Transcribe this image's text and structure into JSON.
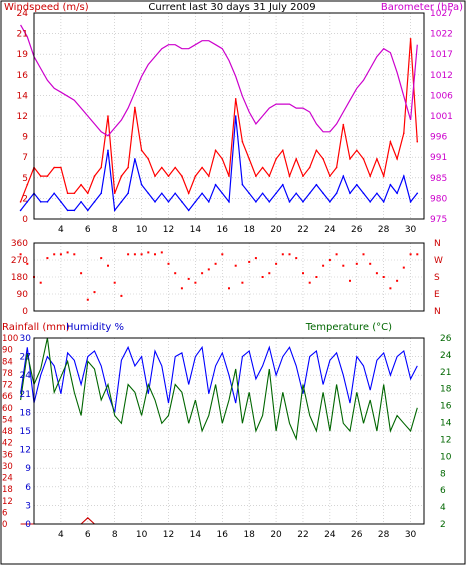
{
  "colors": {
    "wind": "#0000ff",
    "gust": "#ff0000",
    "baro": "#cc00cc",
    "dir": "#ff0000",
    "rain": "#cc0000",
    "humidity": "#0000ff",
    "temperature": "#006600",
    "grid": "#bbbbbb",
    "frame": "#000000",
    "dir_labels": "#cc0000"
  },
  "header": {
    "wind_title": "Windspeed (m/s)",
    "main_title": "Current last 30 days 31 July 2009",
    "baro_title": "Barometer (hPa)"
  },
  "x_axis": {
    "ticks": [
      "4",
      "6",
      "8",
      "10",
      "12",
      "14",
      "16",
      "18",
      "20",
      "22",
      "24",
      "26",
      "28",
      "30"
    ]
  },
  "panel2": {
    "rain_title": "Rainfall (mm)",
    "humidity_title": "Humidity %",
    "temperature_title": "Temperature (°C)"
  },
  "chart_data": [
    {
      "type": "line",
      "title": "Current last 30 days 31 July 2009",
      "ylabel": "Windspeed (m/s)",
      "ylabel_right": "Barometer (hPa)",
      "x": [
        1,
        1.5,
        2,
        2.5,
        3,
        3.5,
        4,
        4.5,
        5,
        5.5,
        6,
        6.5,
        7,
        7.5,
        8,
        8.5,
        9,
        9.5,
        10,
        10.5,
        11,
        11.5,
        12,
        12.5,
        13,
        13.5,
        14,
        14.5,
        15,
        15.5,
        16,
        16.5,
        17,
        17.5,
        18,
        18.5,
        19,
        19.5,
        20,
        20.5,
        21,
        21.5,
        22,
        22.5,
        23,
        23.5,
        24,
        24.5,
        25,
        25.5,
        26,
        26.5,
        27,
        27.5,
        28,
        28.5,
        29,
        29.5,
        30,
        30.5
      ],
      "y_ticks_left": [
        "0",
        "2",
        "5",
        "7",
        "9",
        "12",
        "14",
        "16",
        "19",
        "21",
        "24"
      ],
      "y_ticks_right": [
        "975",
        "980",
        "985",
        "991",
        "996",
        "1001",
        "1006",
        "1012",
        "1017",
        "1022",
        "1027"
      ],
      "ylim": [
        0,
        24
      ],
      "ylim_right": [
        975,
        1027
      ],
      "series": [
        {
          "role": "wind",
          "axis": "left",
          "values": [
            1,
            2,
            3,
            2,
            2,
            3,
            2,
            1,
            1,
            2,
            1,
            2,
            3,
            8,
            1,
            2,
            3,
            7,
            4,
            3,
            2,
            3,
            2,
            3,
            2,
            1,
            2,
            3,
            2,
            4,
            3,
            2,
            12,
            4,
            3,
            2,
            3,
            2,
            3,
            4,
            2,
            3,
            2,
            3,
            4,
            3,
            2,
            3,
            5,
            3,
            4,
            3,
            2,
            3,
            2,
            4,
            3,
            5,
            2,
            3
          ]
        },
        {
          "role": "gust",
          "axis": "left",
          "values": [
            2,
            4,
            6,
            5,
            5,
            6,
            6,
            3,
            3,
            4,
            3,
            5,
            6,
            12,
            3,
            5,
            6,
            13,
            8,
            7,
            5,
            6,
            5,
            6,
            5,
            3,
            5,
            6,
            5,
            8,
            7,
            5,
            14,
            9,
            7,
            5,
            6,
            5,
            7,
            8,
            5,
            7,
            5,
            6,
            8,
            7,
            5,
            6,
            11,
            7,
            8,
            7,
            5,
            7,
            5,
            9,
            7,
            10,
            21,
            9
          ]
        },
        {
          "role": "barometer",
          "axis": "right",
          "values": [
            1024,
            1021,
            1016,
            1013,
            1010,
            1008,
            1007,
            1006,
            1005,
            1003,
            1001,
            999,
            997,
            996,
            998,
            1000,
            1003,
            1007,
            1011,
            1014,
            1016,
            1018,
            1019,
            1019,
            1018,
            1018,
            1019,
            1020,
            1020,
            1019,
            1018,
            1015,
            1011,
            1006,
            1002,
            999,
            1001,
            1003,
            1004,
            1004,
            1004,
            1003,
            1003,
            1002,
            999,
            997,
            997,
            999,
            1002,
            1005,
            1008,
            1010,
            1013,
            1016,
            1018,
            1017,
            1012,
            1006,
            1000,
            1019
          ]
        }
      ]
    },
    {
      "type": "scatter",
      "ylabel": "Wind direction",
      "y_ticks_left": [
        "0",
        "90",
        "180",
        "270",
        "360"
      ],
      "y_ticks_right": [
        "N",
        "E",
        "S",
        "W",
        "N"
      ],
      "ylim": [
        0,
        360
      ],
      "x": [
        1,
        1.5,
        2,
        2.5,
        3,
        3.5,
        4,
        4.5,
        5,
        5.5,
        6,
        6.5,
        7,
        7.5,
        8,
        8.5,
        9,
        9.5,
        10,
        10.5,
        11,
        11.5,
        12,
        12.5,
        13,
        13.5,
        14,
        14.5,
        15,
        15.5,
        16,
        16.5,
        17,
        17.5,
        18,
        18.5,
        19,
        19.5,
        20,
        20.5,
        21,
        21.5,
        22,
        22.5,
        23,
        23.5,
        24,
        24.5,
        25,
        25.5,
        26,
        26.5,
        27,
        27.5,
        28,
        28.5,
        29,
        29.5,
        30,
        30.5
      ],
      "series": [
        {
          "role": "direction",
          "values": [
            300,
            250,
            180,
            150,
            280,
            300,
            300,
            310,
            300,
            200,
            60,
            100,
            280,
            240,
            150,
            80,
            300,
            300,
            300,
            310,
            300,
            310,
            250,
            200,
            120,
            170,
            150,
            200,
            220,
            250,
            300,
            120,
            240,
            150,
            260,
            280,
            180,
            200,
            250,
            300,
            300,
            280,
            200,
            150,
            180,
            240,
            270,
            300,
            240,
            160,
            250,
            300,
            250,
            200,
            180,
            120,
            160,
            230,
            300,
            300
          ]
        }
      ]
    },
    {
      "type": "line",
      "y_ticks_rain": [
        "0",
        "6",
        "12",
        "18",
        "24",
        "30",
        "36",
        "42",
        "48",
        "54",
        "60",
        "66",
        "72",
        "78",
        "84",
        "90",
        "100"
      ],
      "y_ticks_humidity": [
        "0",
        "3",
        "6",
        "9",
        "12",
        "15",
        "18",
        "21",
        "24",
        "27",
        "30"
      ],
      "y_ticks_temperature": [
        "2",
        "4",
        "6",
        "8",
        "10",
        "12",
        "14",
        "16",
        "18",
        "21",
        "24",
        "26"
      ],
      "ylim_humidity": [
        0,
        100
      ],
      "ylim_temperature": [
        2,
        26
      ],
      "ylim_rain": [
        0,
        30
      ],
      "x": [
        1,
        1.5,
        2,
        2.5,
        3,
        3.5,
        4,
        4.5,
        5,
        5.5,
        6,
        6.5,
        7,
        7.5,
        8,
        8.5,
        9,
        9.5,
        10,
        10.5,
        11,
        11.5,
        12,
        12.5,
        13,
        13.5,
        14,
        14.5,
        15,
        15.5,
        16,
        16.5,
        17,
        17.5,
        18,
        18.5,
        19,
        19.5,
        20,
        20.5,
        21,
        21.5,
        22,
        22.5,
        23,
        23.5,
        24,
        24.5,
        25,
        25.5,
        26,
        26.5,
        27,
        27.5,
        28,
        28.5,
        29,
        29.5,
        30,
        30.5
      ],
      "series": [
        {
          "role": "humidity",
          "axis": "humidity",
          "values": [
            70,
            95,
            65,
            80,
            90,
            85,
            70,
            92,
            88,
            75,
            90,
            93,
            85,
            70,
            60,
            88,
            95,
            85,
            90,
            70,
            93,
            85,
            65,
            90,
            92,
            75,
            90,
            95,
            70,
            85,
            92,
            80,
            65,
            90,
            93,
            78,
            85,
            95,
            80,
            90,
            95,
            85,
            70,
            90,
            93,
            75,
            88,
            92,
            80,
            65,
            90,
            85,
            72,
            88,
            92,
            80,
            90,
            93,
            78,
            85
          ]
        },
        {
          "role": "temperature",
          "axis": "temperature",
          "values": [
            18,
            24,
            20,
            22,
            26,
            19,
            21,
            23,
            19,
            16,
            23,
            22,
            18,
            20,
            16,
            15,
            20,
            19,
            16,
            20,
            18,
            15,
            16,
            20,
            19,
            15,
            18,
            14,
            16,
            20,
            15,
            18,
            22,
            15,
            19,
            14,
            16,
            22,
            14,
            19,
            15,
            13,
            20,
            16,
            14,
            19,
            14,
            20,
            15,
            14,
            19,
            15,
            18,
            14,
            20,
            14,
            16,
            15,
            14,
            17
          ]
        },
        {
          "role": "rainfall",
          "axis": "rain",
          "values": [
            0,
            0,
            0,
            0,
            0,
            0,
            0,
            0,
            0,
            0,
            1,
            0,
            0,
            0,
            0,
            0,
            0,
            0,
            0,
            0,
            0,
            0,
            0,
            0,
            0,
            0,
            0,
            0,
            0,
            0,
            0,
            0,
            0,
            0,
            0,
            0,
            0,
            0,
            0,
            0,
            0,
            0,
            0,
            0,
            0,
            0,
            0,
            0,
            0,
            0,
            0,
            0,
            0,
            0,
            0,
            0,
            0,
            0,
            0,
            0
          ]
        }
      ]
    }
  ]
}
